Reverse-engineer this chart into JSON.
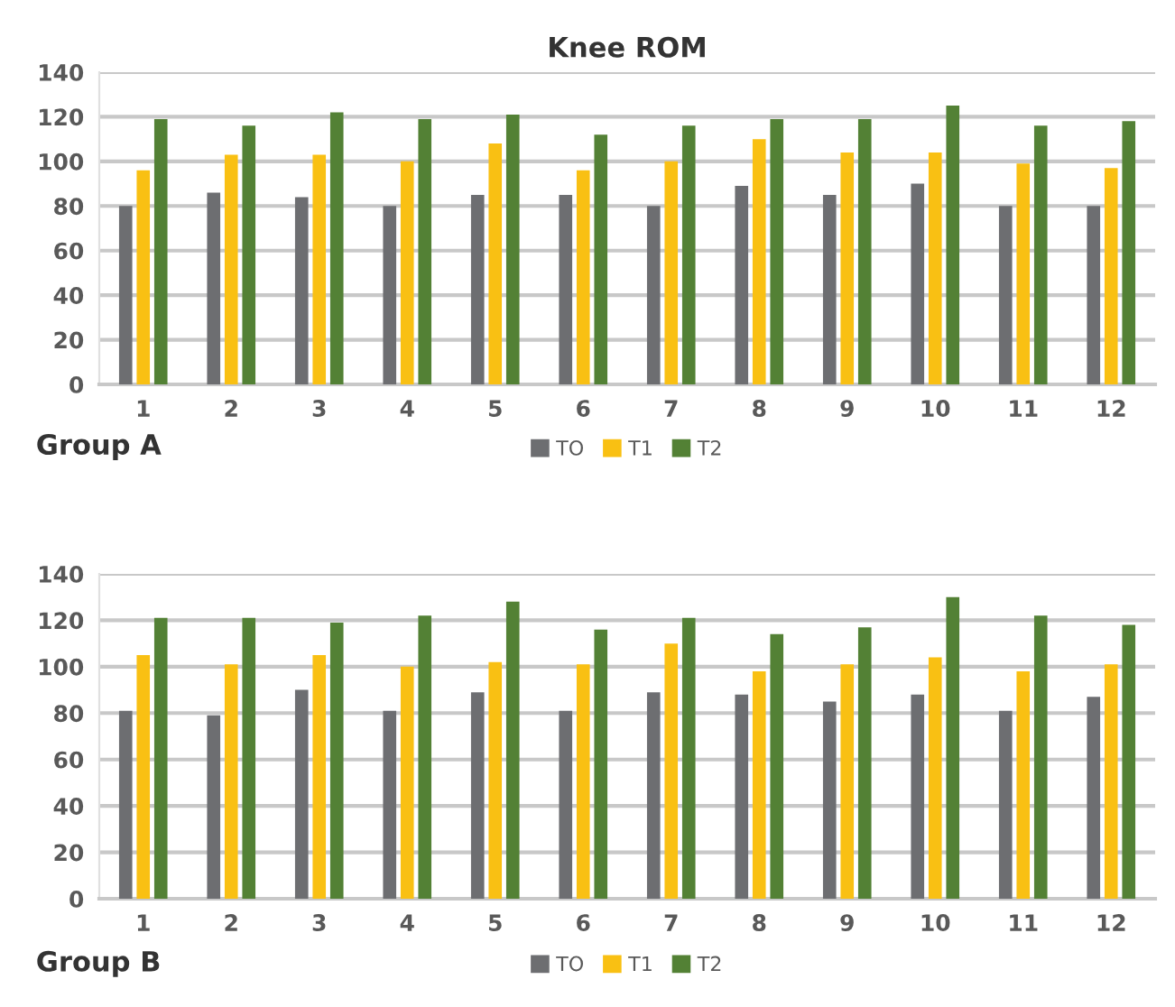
{
  "chart_data": [
    {
      "type": "bar",
      "title": "Knee ROM",
      "categories": [
        "1",
        "2",
        "3",
        "4",
        "5",
        "6",
        "7",
        "8",
        "9",
        "10",
        "11",
        "12"
      ],
      "series": [
        {
          "name": "TO",
          "color": "#6d6e71",
          "values": [
            80,
            86,
            84,
            80,
            85,
            85,
            80,
            89,
            85,
            90,
            80,
            80
          ]
        },
        {
          "name": "T1",
          "color": "#f9c013",
          "values": [
            96,
            103,
            103,
            100,
            108,
            96,
            100,
            110,
            104,
            104,
            99,
            97
          ]
        },
        {
          "name": "T2",
          "color": "#538135",
          "values": [
            119,
            116,
            122,
            119,
            121,
            112,
            116,
            119,
            119,
            125,
            116,
            118
          ]
        }
      ],
      "ylim": [
        0,
        140
      ],
      "yticks": [
        0,
        20,
        40,
        60,
        80,
        100,
        120,
        140
      ],
      "grid": "y",
      "legend": "bottom",
      "annotations": [
        "Group A"
      ]
    },
    {
      "type": "bar",
      "categories": [
        "1",
        "2",
        "3",
        "4",
        "5",
        "6",
        "7",
        "8",
        "9",
        "10",
        "11",
        "12"
      ],
      "series": [
        {
          "name": "TO",
          "color": "#6d6e71",
          "values": [
            81,
            79,
            90,
            81,
            89,
            81,
            89,
            88,
            85,
            88,
            81,
            87
          ]
        },
        {
          "name": "T1",
          "color": "#f9c013",
          "values": [
            105,
            101,
            105,
            100,
            102,
            101,
            110,
            98,
            101,
            104,
            98,
            101
          ]
        },
        {
          "name": "T2",
          "color": "#538135",
          "values": [
            121,
            121,
            119,
            122,
            128,
            116,
            121,
            114,
            117,
            130,
            122,
            118
          ]
        }
      ],
      "ylim": [
        0,
        140
      ],
      "yticks": [
        0,
        20,
        40,
        60,
        80,
        100,
        120,
        140
      ],
      "grid": "y",
      "legend": "bottom",
      "annotations": [
        "Group B"
      ]
    }
  ]
}
